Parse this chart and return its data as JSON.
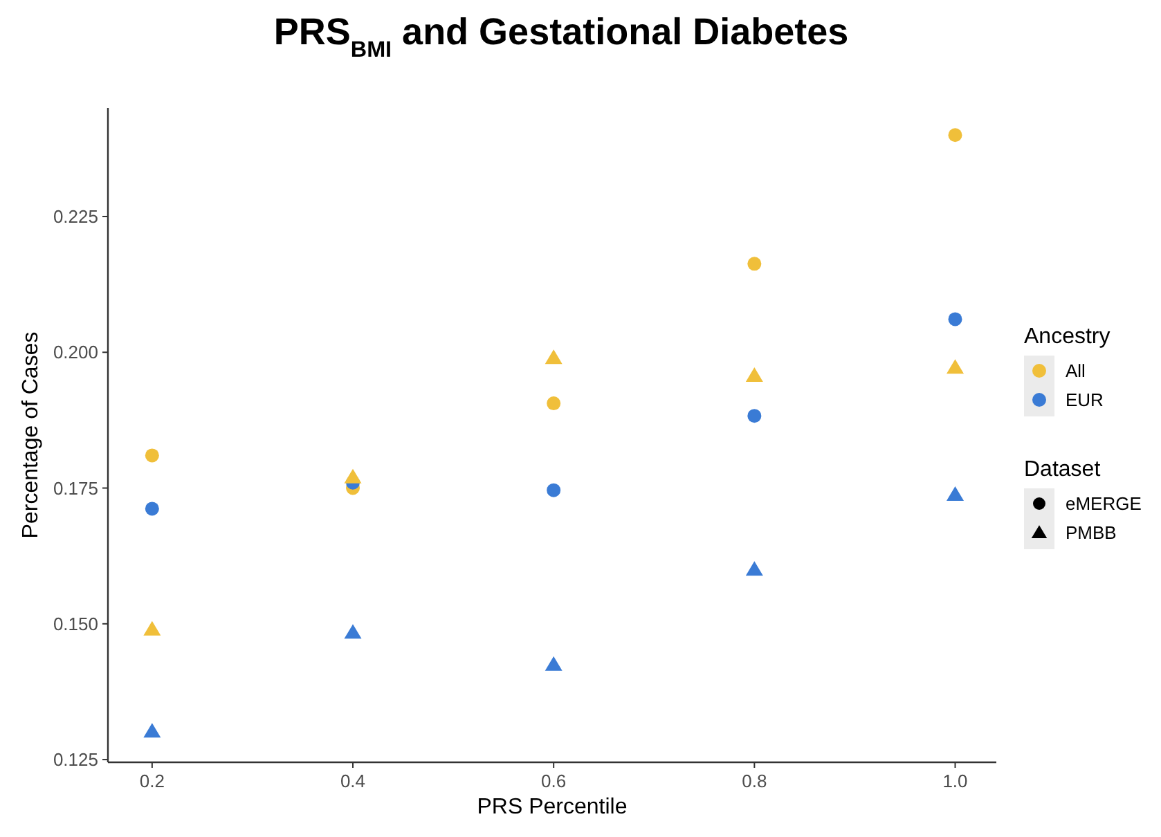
{
  "chart_data": {
    "type": "scatter",
    "title": "PRS$_{BMI}$ and Gestational Diabetes",
    "xlabel": "PRS Percentile",
    "ylabel": "Percentage of Cases",
    "x": [
      0.2,
      0.4,
      0.6,
      0.8,
      1.0
    ],
    "series": [
      {
        "name": "All",
        "color": "#f0bf3a",
        "marker": "circle",
        "values": [
          0.181,
          0.175,
          0.1906,
          0.2163,
          0.24
        ]
      },
      {
        "name": "EUR",
        "color": "#3a7bd5",
        "marker": "circle",
        "values": [
          0.1712,
          0.176,
          0.1746,
          0.1883,
          0.2061
        ]
      },
      {
        "color": "#f0bf3a",
        "marker": "triangle",
        "values": [
          0.149,
          0.177,
          0.199,
          0.1957,
          0.1972
        ]
      },
      {
        "color": "#3a7bd5",
        "marker": "triangle",
        "values": [
          0.1302,
          0.1484,
          0.1425,
          0.16,
          0.1738
        ]
      }
    ],
    "xlim": [
      0.156,
      1.041
    ],
    "ylim": [
      0.1245,
      0.245
    ],
    "xticks": [
      {
        "value": 0.2,
        "label": "0.2"
      },
      {
        "value": 0.4,
        "label": "0.4"
      },
      {
        "value": 0.6,
        "label": "0.6"
      },
      {
        "value": 0.8,
        "label": "0.8"
      },
      {
        "value": 1.0,
        "label": "1.0"
      }
    ],
    "yticks": [
      {
        "value": 0.125,
        "label": "0.125"
      },
      {
        "value": 0.15,
        "label": "0.150"
      },
      {
        "value": 0.175,
        "label": "0.175"
      },
      {
        "value": 0.2,
        "label": "0.200"
      },
      {
        "value": 0.225,
        "label": "0.225"
      }
    ],
    "grid": false,
    "legend": "right",
    "legend_title": "Ancestry",
    "annotations": [
      "Dataset",
      "eMERGE",
      "PMBB"
    ]
  }
}
